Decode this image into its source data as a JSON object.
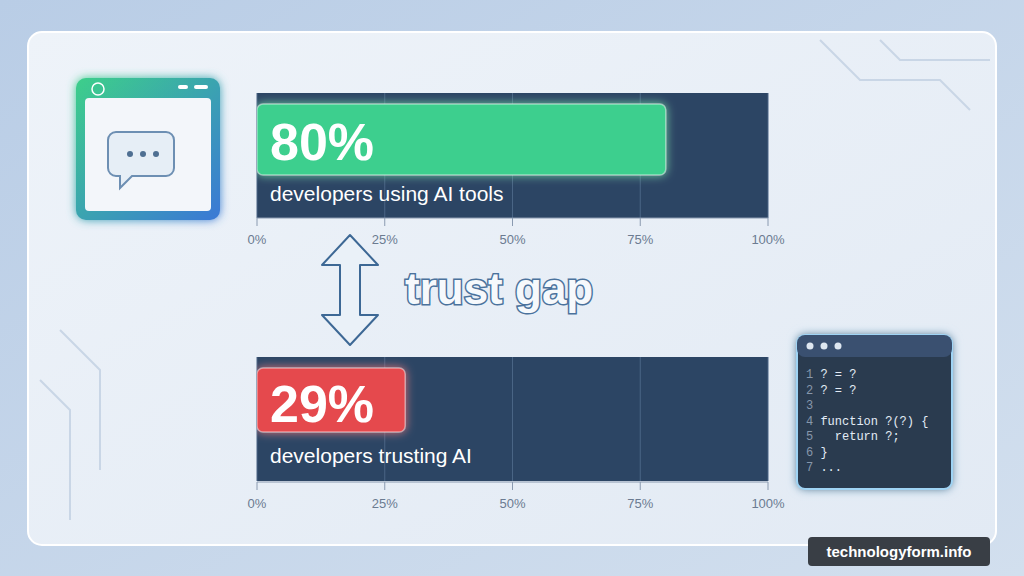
{
  "chart_data": {
    "type": "bar",
    "orientation": "horizontal",
    "categories": [
      "developers using AI tools",
      "developers trusting AI"
    ],
    "values": [
      80,
      29
    ],
    "value_labels": [
      "80%",
      "29%"
    ],
    "colors": [
      "#3ecf8e",
      "#e5484d"
    ],
    "xlim": [
      0,
      100
    ],
    "xticks": [
      {
        "value": 0,
        "label": "0%"
      },
      {
        "value": 25,
        "label": "25%"
      },
      {
        "value": 50,
        "label": "50%"
      },
      {
        "value": 75,
        "label": "75%"
      },
      {
        "value": 100,
        "label": "100%"
      }
    ],
    "grid": true,
    "data_labels": true,
    "annotations": [
      "trust gap",
      "technologyform.info",
      "1 ? = ?",
      "2 ? = ?",
      "3",
      "4 function ?(?) {",
      "5   return ?;",
      "6 }",
      "7 ..."
    ]
  }
}
